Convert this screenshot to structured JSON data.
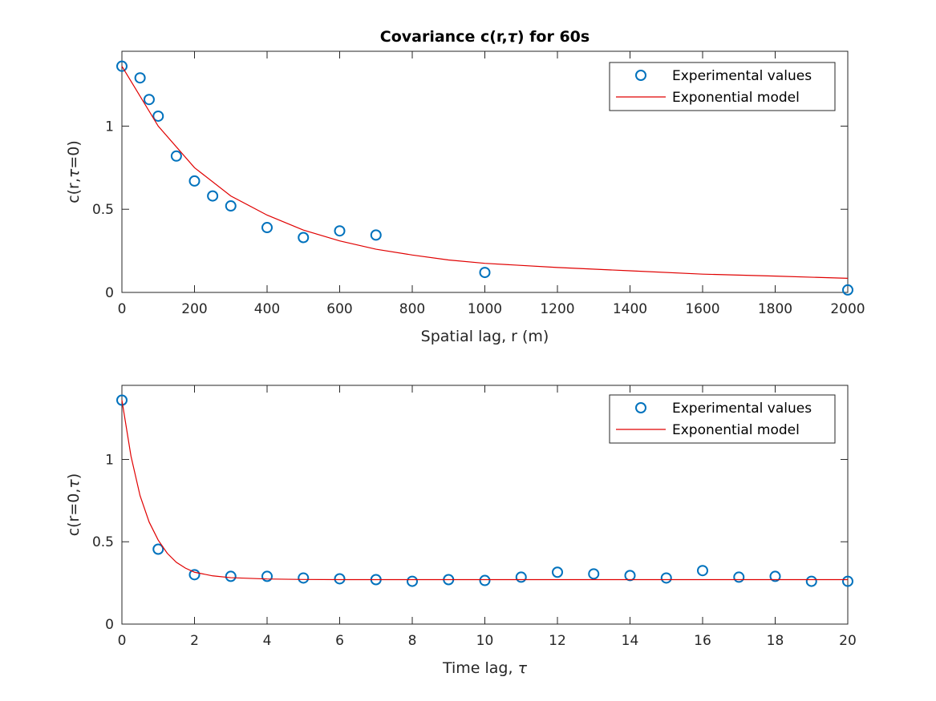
{
  "chart_data": [
    {
      "type": "scatter",
      "title": "Covariance c(r,τ) for 60s",
      "xlabel": "Spatial lag, r (m)",
      "ylabel": "c(r,τ=0)",
      "xlim": [
        0,
        2000
      ],
      "ylim": [
        0,
        1.45
      ],
      "xticks": [
        0,
        200,
        400,
        600,
        800,
        1000,
        1200,
        1400,
        1600,
        1800,
        2000
      ],
      "xtick_labels": [
        "0",
        "200",
        "400",
        "600",
        "800",
        "1000",
        "1200",
        "1400",
        "1600",
        "1800",
        "2000"
      ],
      "yticks": [
        0,
        0.5,
        1
      ],
      "ytick_labels": [
        "0",
        "0.5",
        "1"
      ],
      "grid": false,
      "legend_position": "top-right",
      "series": [
        {
          "name": "Experimental values",
          "kind": "markers",
          "marker": "circle",
          "color": "#0072BD",
          "x": [
            0,
            50,
            75,
            100,
            150,
            200,
            250,
            300,
            400,
            500,
            600,
            700,
            1000,
            2000
          ],
          "y": [
            1.36,
            1.29,
            1.16,
            1.06,
            0.82,
            0.67,
            0.58,
            0.52,
            0.39,
            0.33,
            0.37,
            0.345,
            0.12,
            0.015
          ]
        },
        {
          "name": "Exponential model",
          "kind": "line",
          "color": "#E00000",
          "x": [
            0,
            100,
            200,
            300,
            400,
            500,
            600,
            700,
            800,
            900,
            1000,
            1200,
            1400,
            1600,
            1800,
            2000
          ],
          "y": [
            1.36,
            1.0,
            0.75,
            0.58,
            0.465,
            0.375,
            0.31,
            0.26,
            0.225,
            0.195,
            0.175,
            0.15,
            0.13,
            0.11,
            0.098,
            0.085
          ]
        }
      ]
    },
    {
      "type": "scatter",
      "xlabel": "Time lag, τ",
      "ylabel": "c(r=0,τ)",
      "xlim": [
        0,
        20
      ],
      "ylim": [
        0,
        1.45
      ],
      "xticks": [
        0,
        2,
        4,
        6,
        8,
        10,
        12,
        14,
        16,
        18,
        20
      ],
      "xtick_labels": [
        "0",
        "2",
        "4",
        "6",
        "8",
        "10",
        "12",
        "14",
        "16",
        "18",
        "20"
      ],
      "yticks": [
        0,
        0.5,
        1
      ],
      "ytick_labels": [
        "0",
        "0.5",
        "1"
      ],
      "grid": false,
      "legend_position": "top-right",
      "series": [
        {
          "name": "Experimental values",
          "kind": "markers",
          "marker": "circle",
          "color": "#0072BD",
          "x": [
            0,
            1,
            2,
            3,
            4,
            5,
            6,
            7,
            8,
            9,
            10,
            11,
            12,
            13,
            14,
            15,
            16,
            17,
            18,
            19,
            20
          ],
          "y": [
            1.36,
            0.455,
            0.3,
            0.29,
            0.29,
            0.28,
            0.275,
            0.27,
            0.26,
            0.27,
            0.265,
            0.285,
            0.315,
            0.305,
            0.295,
            0.28,
            0.325,
            0.285,
            0.29,
            0.26,
            0.26
          ]
        },
        {
          "name": "Exponential model",
          "kind": "line",
          "color": "#E00000",
          "x": [
            0,
            0.25,
            0.5,
            0.75,
            1,
            1.25,
            1.5,
            1.75,
            2,
            2.5,
            3,
            4,
            5,
            6,
            8,
            10,
            12,
            14,
            16,
            18,
            20
          ],
          "y": [
            1.36,
            1.02,
            0.78,
            0.62,
            0.51,
            0.43,
            0.375,
            0.34,
            0.315,
            0.293,
            0.282,
            0.274,
            0.271,
            0.27,
            0.27,
            0.27,
            0.27,
            0.27,
            0.27,
            0.27,
            0.27
          ]
        }
      ]
    }
  ]
}
